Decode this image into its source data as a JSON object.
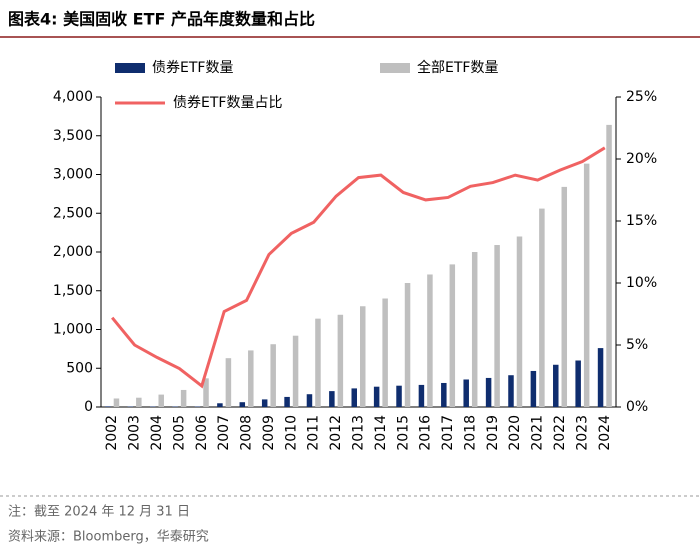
{
  "chart_data": {
    "type": "bar",
    "title": "图表4:  美国固收 ETF 产品年度数量和占比",
    "categories": [
      "2002",
      "2003",
      "2004",
      "2005",
      "2006",
      "2007",
      "2008",
      "2009",
      "2010",
      "2011",
      "2012",
      "2013",
      "2014",
      "2015",
      "2016",
      "2017",
      "2018",
      "2019",
      "2020",
      "2021",
      "2022",
      "2023",
      "2024"
    ],
    "series": [
      {
        "name": "债券ETF数量",
        "color": "#0f2d6e",
        "type": "bar",
        "values": [
          8,
          6,
          6,
          6,
          6,
          48,
          62,
          98,
          130,
          165,
          205,
          240,
          262,
          275,
          285,
          310,
          355,
          375,
          410,
          465,
          545,
          600,
          760
        ]
      },
      {
        "name": "全部ETF数量",
        "color": "#bfbfbf",
        "type": "bar",
        "values": [
          110,
          120,
          160,
          220,
          370,
          630,
          730,
          810,
          920,
          1140,
          1190,
          1300,
          1400,
          1600,
          1710,
          1840,
          2000,
          2090,
          2200,
          2560,
          2840,
          3140,
          3640
        ]
      },
      {
        "name": "债券ETF数量占比",
        "color": "#f06262",
        "type": "line",
        "axis": "y2",
        "values": [
          7.2,
          5.0,
          4.0,
          3.1,
          1.7,
          7.7,
          8.6,
          12.3,
          14.0,
          14.9,
          17.0,
          18.5,
          18.7,
          17.3,
          16.7,
          16.9,
          17.8,
          18.1,
          18.7,
          18.3,
          19.1,
          19.8,
          20.9
        ]
      }
    ],
    "ylim": [
      0,
      4000
    ],
    "yticks": [
      0,
      500,
      {
        "value": 1000,
        "label": "1,000"
      },
      {
        "value": 1500,
        "label": "1,500"
      },
      {
        "value": 2000,
        "label": "2,000"
      },
      {
        "value": 2500,
        "label": "2,500"
      },
      {
        "value": 3000,
        "label": "3,000"
      },
      {
        "value": 3500,
        "label": "3,500"
      },
      {
        "value": 4000,
        "label": "4,000"
      }
    ],
    "y2lim": [
      0,
      25
    ],
    "y2ticks": [
      {
        "value": 0,
        "label": "0%"
      },
      {
        "value": 5,
        "label": "5%"
      },
      {
        "value": 10,
        "label": "10%"
      },
      {
        "value": 15,
        "label": "15%"
      },
      {
        "value": 20,
        "label": "20%"
      },
      {
        "value": 25,
        "label": "25%"
      }
    ],
    "notes": [
      "注：截至 2024 年 12 月 31 日",
      "资料来源：Bloomberg，华泰研究"
    ]
  }
}
